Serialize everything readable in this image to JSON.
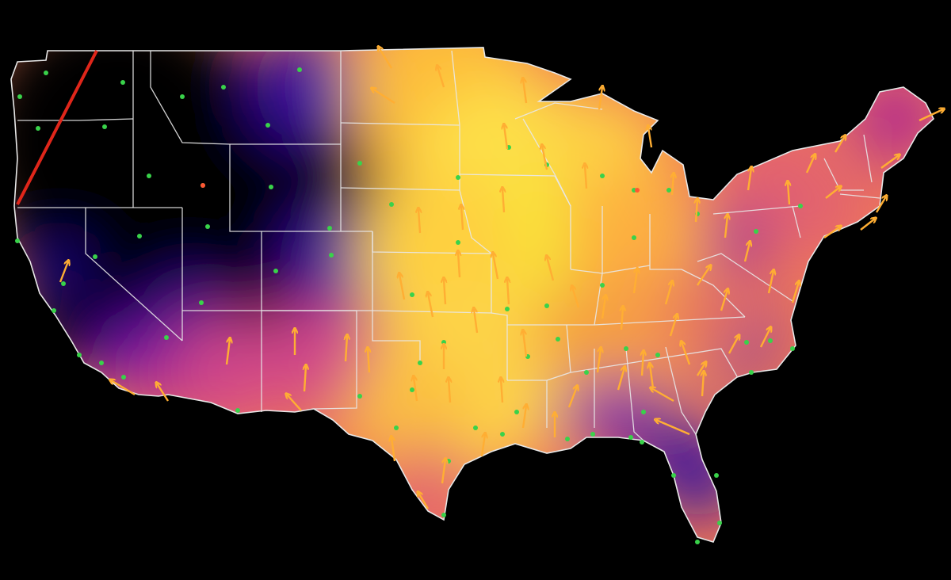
{
  "map": {
    "colors": {
      "background": "#000000",
      "land_outside": "#000000",
      "border": "#e8e8e8",
      "station": "#39d24a",
      "station_alt": "#ff5533",
      "arrow": "#ffae33",
      "terminator": "#e0261a"
    },
    "color_scale": {
      "type": "plasma",
      "stops": [
        "#0d0887",
        "#6a00a8",
        "#b12a90",
        "#e16462",
        "#fca636",
        "#f0f921"
      ]
    },
    "features": {
      "map_type": "choropleth-field",
      "region": "contiguous-united-states",
      "legend": "none",
      "state_borders": true,
      "station_markers": true,
      "direction_arrows": true,
      "terminator_line": true
    }
  }
}
